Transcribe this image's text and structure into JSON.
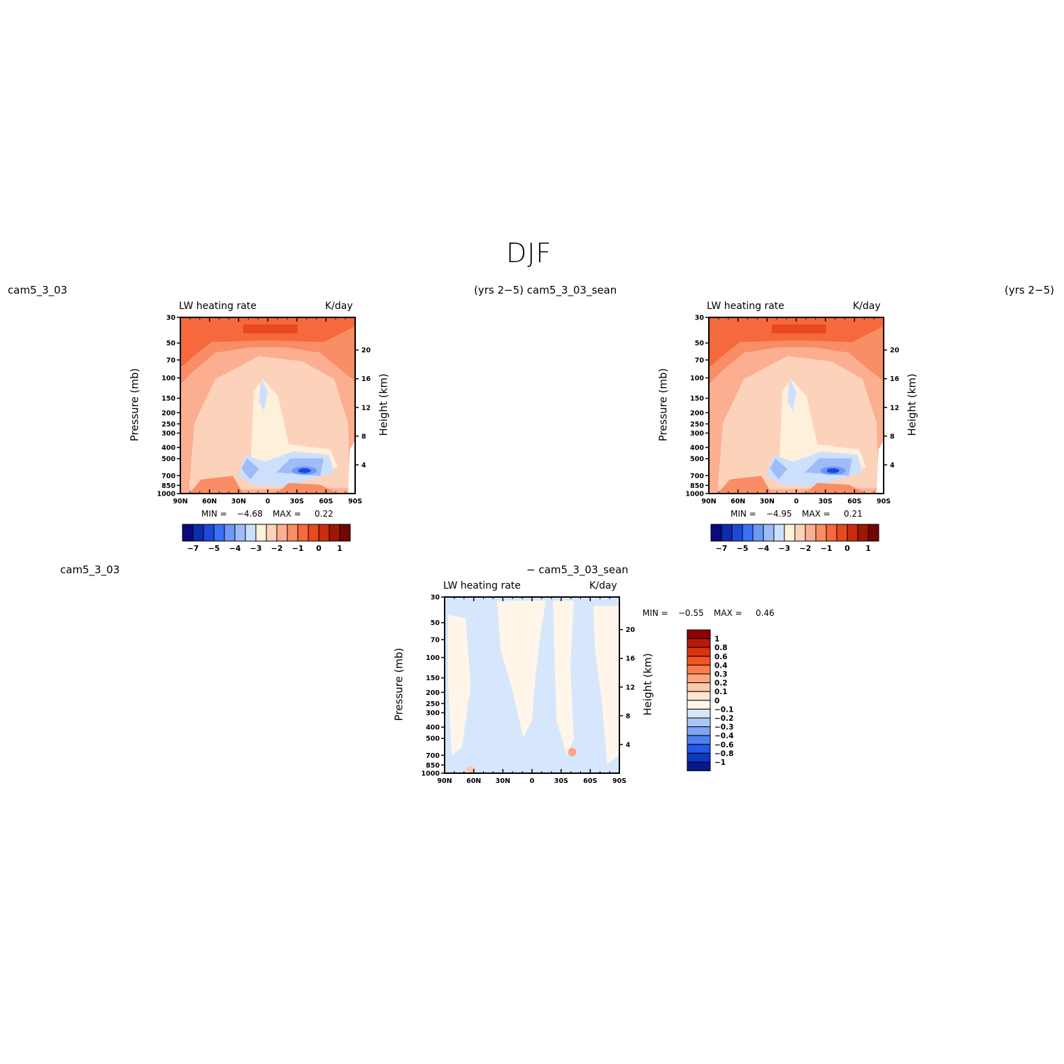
{
  "title": "DJF",
  "panels": [
    {
      "case_left": "cam5_3_03",
      "case_right": "(yrs 2−5) cam5_3_03_sean",
      "left_title": "LW heating rate",
      "right_title": "K/day",
      "min_label": "MIN =",
      "min_value": "−4.68",
      "max_label": "MAX =",
      "max_value": "0.22"
    },
    {
      "case_left": "cam5_3_03_sean",
      "case_right": "(yrs 2−5)",
      "left_title": "LW heating rate",
      "right_title": "K/day",
      "min_label": "MIN =",
      "min_value": "−4.95",
      "max_label": "MAX =",
      "max_value": "0.21"
    },
    {
      "case_left": "cam5_3_03",
      "case_right": "− cam5_3_03_sean",
      "left_title": "LW heating rate",
      "right_title": "K/day",
      "min_label": "MIN =",
      "min_value": "−0.55",
      "max_label": "MAX =",
      "max_value": "0.46"
    }
  ],
  "axes": {
    "ylabel": "Pressure (mb)",
    "ylabel_right": "Height (km)",
    "pressure_ticks": [
      "30",
      "50",
      "70",
      "100",
      "150",
      "200",
      "250",
      "300",
      "400",
      "500",
      "700",
      "850",
      "1000"
    ],
    "height_ticks": [
      "20",
      "16",
      "12",
      "8",
      "4"
    ],
    "lat_ticks": [
      "90N",
      "60N",
      "30N",
      "0",
      "30S",
      "60S",
      "90S"
    ]
  },
  "colorbar_abs": {
    "labels": [
      "−7",
      "−5",
      "−4",
      "−3",
      "−2",
      "−1",
      "0",
      "1"
    ],
    "colors": [
      "#0a0a7c",
      "#0f2bb0",
      "#1c49d8",
      "#3b6ff5",
      "#6d98f7",
      "#9fbcf9",
      "#cde0fb",
      "#fff0dc",
      "#fdd2bb",
      "#fcae90",
      "#f98d65",
      "#f5693d",
      "#e8491f",
      "#c92d0e",
      "#9e1705",
      "#730700"
    ]
  },
  "colorbar_diff": {
    "labels": [
      "1",
      "0.8",
      "0.6",
      "0.4",
      "0.3",
      "0.2",
      "0.1",
      "0",
      "−0.1",
      "−0.2",
      "−0.3",
      "−0.4",
      "−0.6",
      "−0.8",
      "−1"
    ],
    "colors": [
      "#900000",
      "#b7190a",
      "#dd3410",
      "#f65420",
      "#fa7b4b",
      "#fca57f",
      "#fdc9ac",
      "#fee6d2",
      "#fff5e8",
      "#d6e6fd",
      "#a9c6fb",
      "#7ea4f7",
      "#4f7ff1",
      "#2458e8",
      "#1037c2",
      "#061a8c"
    ]
  },
  "chart_data": [
    {
      "type": "heatmap",
      "title": "LW heating rate",
      "units": "K/day",
      "case": "cam5_3_03 (yrs 2−5)",
      "x_ticks": [
        "90N",
        "60N",
        "30N",
        "0",
        "30S",
        "60S",
        "90S"
      ],
      "y_ticks_pressure_mb": [
        30,
        50,
        70,
        100,
        150,
        200,
        250,
        300,
        400,
        500,
        700,
        850,
        1000
      ],
      "y_ticks_height_km": [
        20,
        16,
        12,
        8,
        4
      ],
      "min": -4.68,
      "max": 0.22,
      "levels": [
        -7,
        -6,
        -5,
        -4.5,
        -4,
        -3.5,
        -3,
        -2.5,
        -2,
        -1.5,
        -1,
        -0.5,
        0,
        0.5,
        1
      ]
    },
    {
      "type": "heatmap",
      "title": "LW heating rate",
      "units": "K/day",
      "case": "cam5_3_03_sean (yrs 2−5)",
      "x_ticks": [
        "90N",
        "60N",
        "30N",
        "0",
        "30S",
        "60S",
        "90S"
      ],
      "y_ticks_pressure_mb": [
        30,
        50,
        70,
        100,
        150,
        200,
        250,
        300,
        400,
        500,
        700,
        850,
        1000
      ],
      "y_ticks_height_km": [
        20,
        16,
        12,
        8,
        4
      ],
      "min": -4.95,
      "max": 0.21,
      "levels": [
        -7,
        -6,
        -5,
        -4.5,
        -4,
        -3.5,
        -3,
        -2.5,
        -2,
        -1.5,
        -1,
        -0.5,
        0,
        0.5,
        1
      ]
    },
    {
      "type": "heatmap",
      "title": "LW heating rate",
      "units": "K/day",
      "case": "cam5_3_03 − cam5_3_03_sean",
      "x_ticks": [
        "90N",
        "60N",
        "30N",
        "0",
        "30S",
        "60S",
        "90S"
      ],
      "y_ticks_pressure_mb": [
        30,
        50,
        70,
        100,
        150,
        200,
        250,
        300,
        400,
        500,
        700,
        850,
        1000
      ],
      "y_ticks_height_km": [
        20,
        16,
        12,
        8,
        4
      ],
      "min": -0.55,
      "max": 0.46,
      "levels": [
        -1,
        -0.8,
        -0.6,
        -0.4,
        -0.3,
        -0.2,
        -0.1,
        0,
        0.1,
        0.2,
        0.3,
        0.4,
        0.6,
        0.8,
        1
      ]
    }
  ]
}
